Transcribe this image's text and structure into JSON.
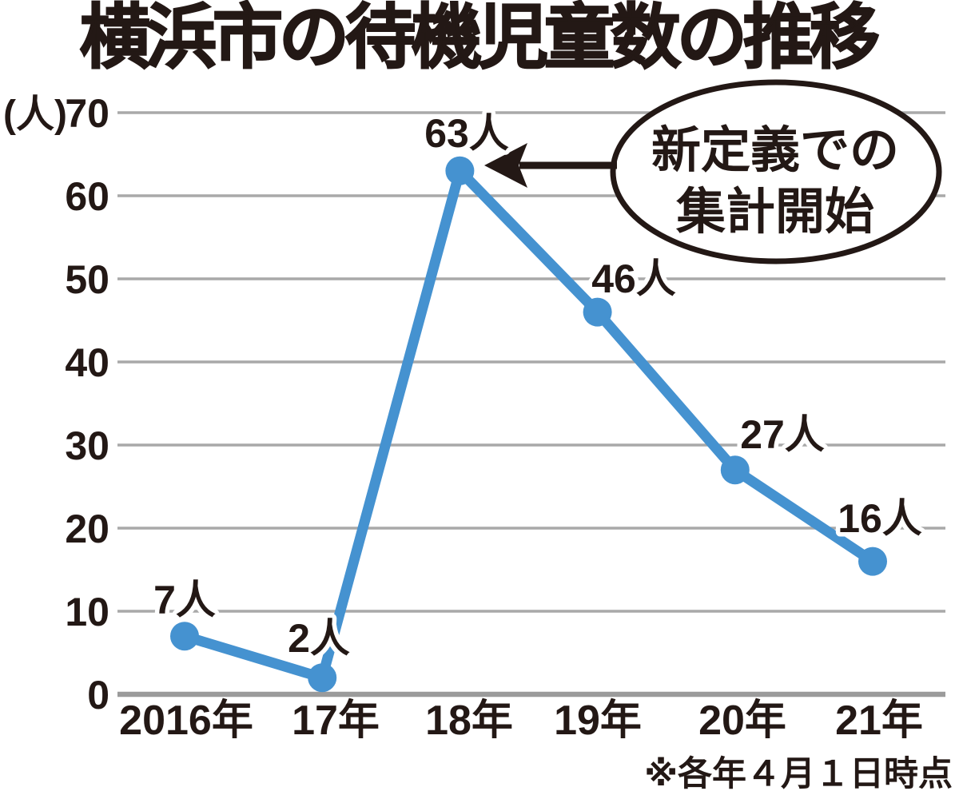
{
  "chart_data": {
    "type": "line",
    "title": "横浜市の待機児童数の推移",
    "y_unit_label": "(人)",
    "footnote": "※各年４月１日時点",
    "categories": [
      "2016年",
      "17年",
      "18年",
      "19年",
      "20年",
      "21年"
    ],
    "values": [
      7,
      2,
      63,
      46,
      27,
      16
    ],
    "point_labels": [
      "7人",
      "2人",
      "63人",
      "46人",
      "27人",
      "16人"
    ],
    "ylim": [
      0,
      70
    ],
    "yticks": [
      0,
      10,
      20,
      30,
      40,
      50,
      60,
      70
    ],
    "grid": true,
    "legend": false,
    "annotation": {
      "text_lines": [
        "新定義での",
        "集計開始"
      ],
      "points_to_category": "18年",
      "shape": "ellipse-with-arrow"
    },
    "colors": {
      "line": "#4592D0",
      "grid": "#A9A9A9",
      "axis_line": "#9B9B9B",
      "text": "#231815",
      "background": "#FFFFFF"
    }
  }
}
